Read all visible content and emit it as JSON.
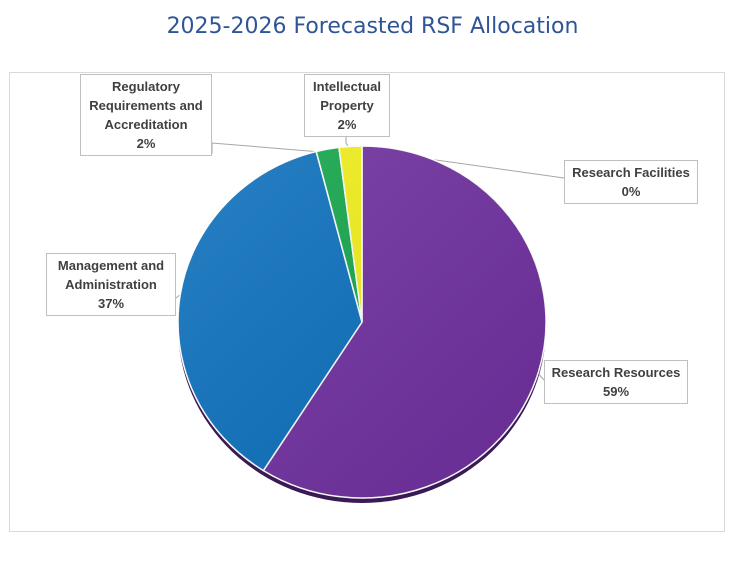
{
  "title": "2025-2026 Forecasted RSF Allocation",
  "chart_data": {
    "type": "pie",
    "title": "2025-2026 Forecasted RSF Allocation",
    "slices": [
      {
        "label": "Research Resources",
        "value": 59,
        "value_label": "59%",
        "color": "#7030a0"
      },
      {
        "label": "Management and Administration",
        "value": 37,
        "value_label": "37%",
        "color": "#0c70bd"
      },
      {
        "label": "Regulatory Requirements and Accreditation",
        "value": 2,
        "value_label": "2%",
        "color": "#14a74b"
      },
      {
        "label": "Intellectual Property",
        "value": 2,
        "value_label": "2%",
        "color": "#f2ef1a"
      },
      {
        "label": "Research Facilities",
        "value": 0,
        "value_label": "0%",
        "color": "#a5a5a5"
      }
    ],
    "legend": "none",
    "labels": "callouts"
  }
}
